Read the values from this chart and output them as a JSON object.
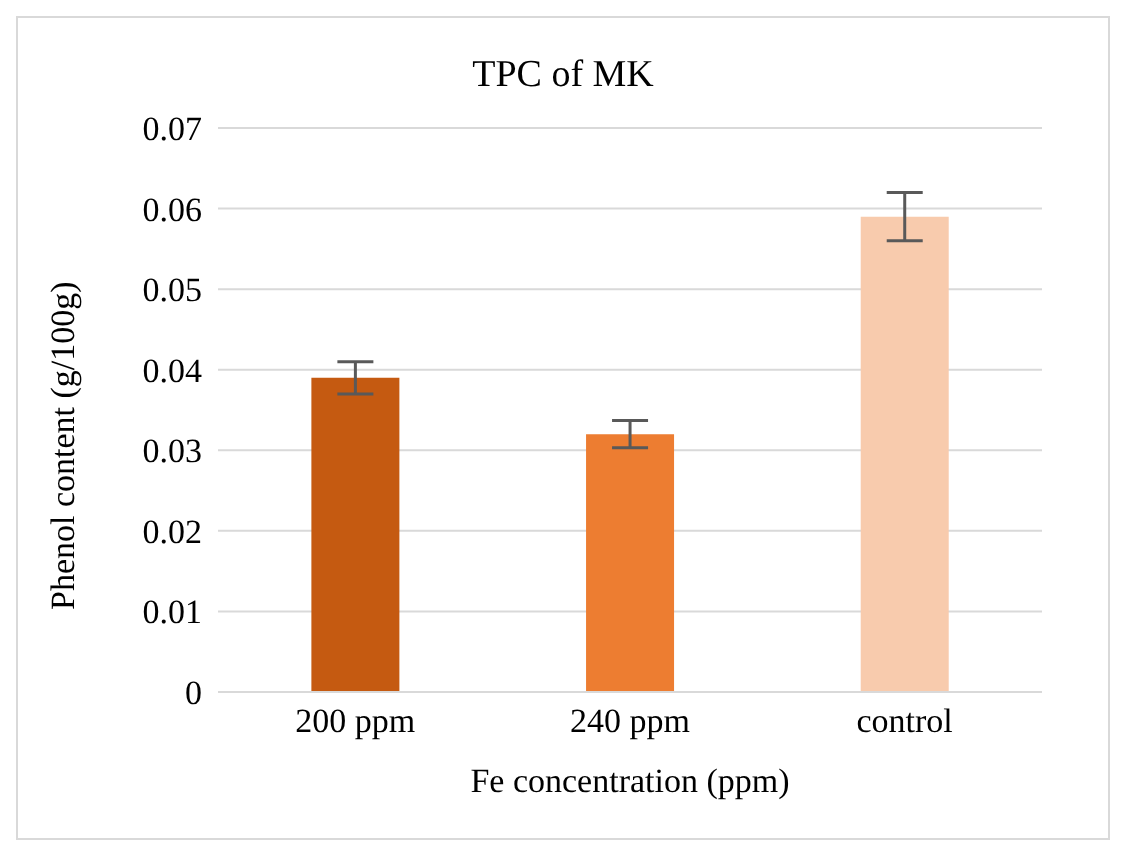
{
  "chart_data": {
    "type": "bar",
    "title": "TPC of MK",
    "xlabel": "Fe concentration (ppm)",
    "ylabel": "Phenol content (g/100g)",
    "categories": [
      "200 ppm",
      "240 ppm",
      "control"
    ],
    "values": [
      0.039,
      0.032,
      0.059
    ],
    "colors": [
      "#c55a11",
      "#ed7d31",
      "#f8cbad"
    ],
    "errors": [
      0.002,
      0.0017,
      0.003
    ],
    "ylim": [
      0,
      0.07
    ],
    "yticks": [
      0,
      0.01,
      0.02,
      0.03,
      0.04,
      0.05,
      0.06,
      0.07
    ],
    "grid": "y",
    "legend": false
  }
}
